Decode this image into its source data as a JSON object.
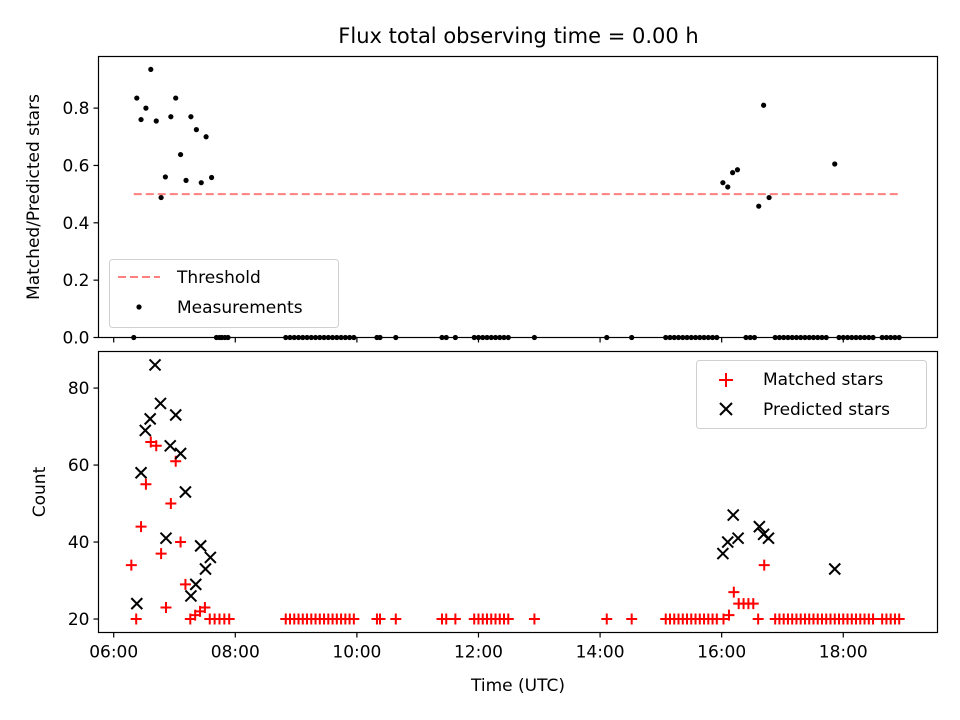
{
  "title": "Flux total observing time = 0.00 h",
  "colors": {
    "threshold": "#ff7f7f",
    "measurements": "#000000",
    "matched": "#ff0000",
    "predicted": "#000000"
  },
  "chart_data": [
    {
      "type": "scatter",
      "title": "Flux total observing time = 0.00 h",
      "ylabel": "Matched/Predicted stars",
      "xlabel": "",
      "x_unit": "hours UTC",
      "xlim": [
        5.75,
        19.55
      ],
      "ylim": [
        0,
        0.98
      ],
      "yticks": [
        0.0,
        0.2,
        0.4,
        0.6,
        0.8
      ],
      "ytick_labels": [
        "0.0",
        "0.2",
        "0.4",
        "0.6",
        "0.8"
      ],
      "legend": {
        "position": "lower-left",
        "entries": [
          "Threshold",
          "Measurements"
        ]
      },
      "threshold": {
        "name": "Threshold",
        "x": [
          6.33,
          18.92
        ],
        "y": 0.5,
        "style": "dashed"
      },
      "series": [
        {
          "name": "Measurements",
          "marker": "dot",
          "points": [
            [
              6.33,
              0
            ],
            [
              6.38,
              0.835
            ],
            [
              6.45,
              0.76
            ],
            [
              6.53,
              0.8
            ],
            [
              6.61,
              0.935
            ],
            [
              6.7,
              0.755
            ],
            [
              6.78,
              0.488
            ],
            [
              6.85,
              0.56
            ],
            [
              6.94,
              0.77
            ],
            [
              7.02,
              0.835
            ],
            [
              7.1,
              0.638
            ],
            [
              7.19,
              0.548
            ],
            [
              7.27,
              0.77
            ],
            [
              7.36,
              0.725
            ],
            [
              7.44,
              0.54
            ],
            [
              7.52,
              0.7
            ],
            [
              7.61,
              0.558
            ],
            [
              7.69,
              0
            ],
            [
              7.74,
              0
            ],
            [
              7.78,
              0
            ],
            [
              7.83,
              0
            ],
            [
              7.88,
              0
            ],
            [
              8.83,
              0
            ],
            [
              8.9,
              0
            ],
            [
              8.97,
              0
            ],
            [
              9.04,
              0
            ],
            [
              9.11,
              0
            ],
            [
              9.18,
              0
            ],
            [
              9.25,
              0
            ],
            [
              9.32,
              0
            ],
            [
              9.39,
              0
            ],
            [
              9.46,
              0
            ],
            [
              9.53,
              0
            ],
            [
              9.6,
              0
            ],
            [
              9.67,
              0
            ],
            [
              9.74,
              0
            ],
            [
              9.81,
              0
            ],
            [
              9.88,
              0
            ],
            [
              9.95,
              0
            ],
            [
              10.33,
              0
            ],
            [
              10.38,
              0
            ],
            [
              10.64,
              0
            ],
            [
              11.4,
              0
            ],
            [
              11.47,
              0
            ],
            [
              11.62,
              0
            ],
            [
              11.93,
              0
            ],
            [
              12.0,
              0
            ],
            [
              12.07,
              0
            ],
            [
              12.14,
              0
            ],
            [
              12.21,
              0
            ],
            [
              12.28,
              0
            ],
            [
              12.35,
              0
            ],
            [
              12.42,
              0
            ],
            [
              12.49,
              0
            ],
            [
              12.92,
              0
            ],
            [
              14.11,
              0
            ],
            [
              14.52,
              0
            ],
            [
              15.08,
              0
            ],
            [
              15.15,
              0
            ],
            [
              15.22,
              0
            ],
            [
              15.29,
              0
            ],
            [
              15.36,
              0
            ],
            [
              15.43,
              0
            ],
            [
              15.5,
              0
            ],
            [
              15.57,
              0
            ],
            [
              15.64,
              0
            ],
            [
              15.71,
              0
            ],
            [
              15.78,
              0
            ],
            [
              15.85,
              0
            ],
            [
              15.92,
              0
            ],
            [
              16.02,
              0.54
            ],
            [
              16.1,
              0.525
            ],
            [
              16.18,
              0.575
            ],
            [
              16.26,
              0.585
            ],
            [
              16.4,
              0
            ],
            [
              16.47,
              0
            ],
            [
              16.54,
              0
            ],
            [
              16.61,
              0.458
            ],
            [
              16.69,
              0.81
            ],
            [
              16.78,
              0.488
            ],
            [
              16.88,
              0
            ],
            [
              16.95,
              0
            ],
            [
              17.02,
              0
            ],
            [
              17.09,
              0
            ],
            [
              17.16,
              0
            ],
            [
              17.23,
              0
            ],
            [
              17.3,
              0
            ],
            [
              17.37,
              0
            ],
            [
              17.44,
              0
            ],
            [
              17.51,
              0
            ],
            [
              17.58,
              0
            ],
            [
              17.65,
              0
            ],
            [
              17.72,
              0
            ],
            [
              17.86,
              0.605
            ],
            [
              17.93,
              0
            ],
            [
              18.0,
              0
            ],
            [
              18.07,
              0
            ],
            [
              18.14,
              0
            ],
            [
              18.21,
              0
            ],
            [
              18.28,
              0
            ],
            [
              18.35,
              0
            ],
            [
              18.42,
              0
            ],
            [
              18.49,
              0
            ],
            [
              18.64,
              0
            ],
            [
              18.71,
              0
            ],
            [
              18.78,
              0
            ],
            [
              18.85,
              0
            ],
            [
              18.92,
              0
            ]
          ]
        }
      ]
    },
    {
      "type": "scatter",
      "title": "",
      "xlabel": "Time (UTC)",
      "ylabel": "Count",
      "x_unit": "hours UTC",
      "xlim": [
        5.75,
        19.55
      ],
      "ylim": [
        16.5,
        89.5
      ],
      "xticks": [
        6,
        8,
        10,
        12,
        14,
        16,
        18
      ],
      "xtick_labels": [
        "06:00",
        "08:00",
        "10:00",
        "12:00",
        "14:00",
        "16:00",
        "18:00"
      ],
      "yticks": [
        20,
        40,
        60,
        80
      ],
      "ytick_labels": [
        "20",
        "40",
        "60",
        "80"
      ],
      "legend": {
        "position": "top-right",
        "entries": [
          "Matched stars",
          "Predicted stars"
        ]
      },
      "series": [
        {
          "name": "Matched stars",
          "marker": "plus",
          "points": [
            [
              6.29,
              34
            ],
            [
              6.37,
              20
            ],
            [
              6.45,
              44
            ],
            [
              6.53,
              55
            ],
            [
              6.61,
              66
            ],
            [
              6.7,
              65
            ],
            [
              6.78,
              37
            ],
            [
              6.86,
              23
            ],
            [
              6.94,
              50
            ],
            [
              7.02,
              61
            ],
            [
              7.1,
              40
            ],
            [
              7.18,
              29
            ],
            [
              7.26,
              20
            ],
            [
              7.34,
              21
            ],
            [
              7.42,
              22
            ],
            [
              7.5,
              23
            ],
            [
              7.58,
              20
            ],
            [
              7.66,
              20
            ],
            [
              7.74,
              20
            ],
            [
              7.82,
              20
            ],
            [
              7.9,
              20
            ],
            [
              8.83,
              20
            ],
            [
              8.9,
              20
            ],
            [
              8.97,
              20
            ],
            [
              9.04,
              20
            ],
            [
              9.11,
              20
            ],
            [
              9.18,
              20
            ],
            [
              9.25,
              20
            ],
            [
              9.32,
              20
            ],
            [
              9.39,
              20
            ],
            [
              9.46,
              20
            ],
            [
              9.53,
              20
            ],
            [
              9.6,
              20
            ],
            [
              9.67,
              20
            ],
            [
              9.74,
              20
            ],
            [
              9.81,
              20
            ],
            [
              9.88,
              20
            ],
            [
              9.95,
              20
            ],
            [
              10.33,
              20
            ],
            [
              10.38,
              20
            ],
            [
              10.64,
              20
            ],
            [
              11.4,
              20
            ],
            [
              11.47,
              20
            ],
            [
              11.62,
              20
            ],
            [
              11.93,
              20
            ],
            [
              12.0,
              20
            ],
            [
              12.07,
              20
            ],
            [
              12.14,
              20
            ],
            [
              12.21,
              20
            ],
            [
              12.28,
              20
            ],
            [
              12.35,
              20
            ],
            [
              12.42,
              20
            ],
            [
              12.49,
              20
            ],
            [
              12.92,
              20
            ],
            [
              14.11,
              20
            ],
            [
              14.52,
              20
            ],
            [
              15.08,
              20
            ],
            [
              15.15,
              20
            ],
            [
              15.22,
              20
            ],
            [
              15.29,
              20
            ],
            [
              15.36,
              20
            ],
            [
              15.43,
              20
            ],
            [
              15.5,
              20
            ],
            [
              15.57,
              20
            ],
            [
              15.64,
              20
            ],
            [
              15.71,
              20
            ],
            [
              15.78,
              20
            ],
            [
              15.85,
              20
            ],
            [
              15.92,
              20
            ],
            [
              16.03,
              20
            ],
            [
              16.12,
              21
            ],
            [
              16.2,
              27
            ],
            [
              16.28,
              24
            ],
            [
              16.36,
              24
            ],
            [
              16.44,
              24
            ],
            [
              16.52,
              24
            ],
            [
              16.6,
              20
            ],
            [
              16.7,
              34
            ],
            [
              16.88,
              20
            ],
            [
              16.95,
              20
            ],
            [
              17.02,
              20
            ],
            [
              17.09,
              20
            ],
            [
              17.16,
              20
            ],
            [
              17.23,
              20
            ],
            [
              17.3,
              20
            ],
            [
              17.37,
              20
            ],
            [
              17.44,
              20
            ],
            [
              17.51,
              20
            ],
            [
              17.58,
              20
            ],
            [
              17.65,
              20
            ],
            [
              17.72,
              20
            ],
            [
              17.79,
              20
            ],
            [
              17.86,
              20
            ],
            [
              17.93,
              20
            ],
            [
              18.0,
              20
            ],
            [
              18.07,
              20
            ],
            [
              18.14,
              20
            ],
            [
              18.21,
              20
            ],
            [
              18.28,
              20
            ],
            [
              18.35,
              20
            ],
            [
              18.42,
              20
            ],
            [
              18.49,
              20
            ],
            [
              18.64,
              20
            ],
            [
              18.71,
              20
            ],
            [
              18.78,
              20
            ],
            [
              18.85,
              20
            ],
            [
              18.92,
              20
            ]
          ]
        },
        {
          "name": "Predicted stars",
          "marker": "x",
          "points": [
            [
              6.38,
              24
            ],
            [
              6.45,
              58
            ],
            [
              6.52,
              69
            ],
            [
              6.6,
              72
            ],
            [
              6.68,
              86
            ],
            [
              6.77,
              76
            ],
            [
              6.86,
              41
            ],
            [
              6.93,
              65
            ],
            [
              7.02,
              73
            ],
            [
              7.1,
              63
            ],
            [
              7.18,
              53
            ],
            [
              7.27,
              26
            ],
            [
              7.35,
              29
            ],
            [
              7.43,
              39
            ],
            [
              7.51,
              33
            ],
            [
              7.59,
              36
            ],
            [
              16.02,
              37
            ],
            [
              16.1,
              40
            ],
            [
              16.19,
              47
            ],
            [
              16.27,
              41
            ],
            [
              16.62,
              44
            ],
            [
              16.69,
              42
            ],
            [
              16.77,
              41
            ],
            [
              17.86,
              33
            ]
          ]
        }
      ]
    }
  ]
}
